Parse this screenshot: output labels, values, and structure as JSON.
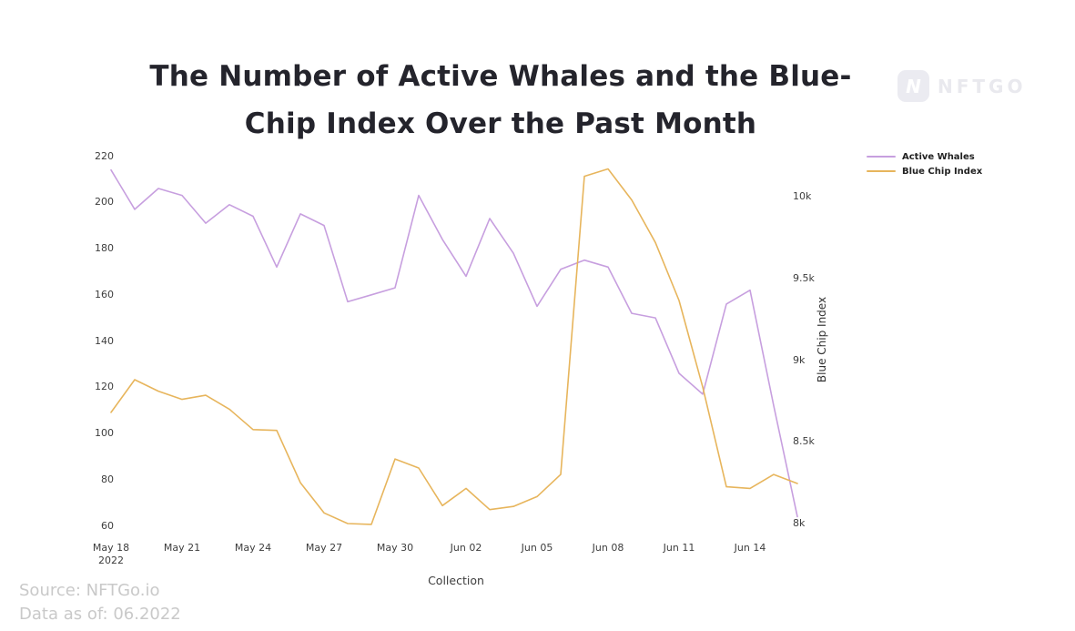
{
  "page": {
    "title_line1": "The Number of Active Whales and the Blue-",
    "title_line2": "Chip Index Over the Past Month",
    "watermark_logo_letter": "N",
    "watermark_text": "NFTGO",
    "source_line1": "Source: NFTGo.io",
    "source_line2": "Data as of: 06.2022"
  },
  "chart_data": {
    "type": "line",
    "title": "The Number of Active Whales and the Blue-Chip Index Over the Past Month",
    "xlabel": "Collection",
    "grid": false,
    "x": [
      "May 18",
      "May 19",
      "May 20",
      "May 21",
      "May 22",
      "May 23",
      "May 24",
      "May 25",
      "May 26",
      "May 27",
      "May 28",
      "May 29",
      "May 30",
      "May 31",
      "Jun 01",
      "Jun 02",
      "Jun 03",
      "Jun 04",
      "Jun 05",
      "Jun 06",
      "Jun 07",
      "Jun 08",
      "Jun 09",
      "Jun 10",
      "Jun 11",
      "Jun 12",
      "Jun 13",
      "Jun 14",
      "Jun 15",
      "Jun 16"
    ],
    "x_tick_labels": [
      {
        "label": "May 18",
        "sub": "2022",
        "index": 0
      },
      {
        "label": "May 21",
        "index": 3
      },
      {
        "label": "May 24",
        "index": 6
      },
      {
        "label": "May 27",
        "index": 9
      },
      {
        "label": "May 30",
        "index": 12
      },
      {
        "label": "Jun 02",
        "index": 15
      },
      {
        "label": "Jun 05",
        "index": 18
      },
      {
        "label": "Jun 08",
        "index": 21
      },
      {
        "label": "Jun 11",
        "index": 24
      },
      {
        "label": "Jun 14",
        "index": 27
      }
    ],
    "series": [
      {
        "name": "Active Whales",
        "axis": "left",
        "color": "#c79fdf",
        "values": [
          214,
          197,
          206,
          203,
          191,
          199,
          194,
          172,
          195,
          190,
          157,
          160,
          163,
          203,
          184,
          168,
          193,
          178,
          155,
          171,
          175,
          172,
          152,
          150,
          126,
          117,
          156,
          162,
          112,
          64
        ]
      },
      {
        "name": "Blue Chip Index",
        "axis": "right",
        "color": "#e7b55c",
        "values": [
          8680,
          8880,
          8810,
          8760,
          8785,
          8700,
          8575,
          8570,
          8250,
          8065,
          8000,
          7995,
          8395,
          8340,
          8110,
          8215,
          8085,
          8105,
          8165,
          8300,
          10125,
          10170,
          9980,
          9720,
          9365,
          8835,
          8225,
          8215,
          8300,
          8245
        ]
      }
    ],
    "left_axis": {
      "ticks": [
        220,
        200,
        180,
        160,
        140,
        120,
        100,
        80,
        60
      ],
      "range": [
        60,
        220
      ]
    },
    "right_axis": {
      "label": "Blue Chip Index",
      "ticks": [
        {
          "label": "10k",
          "value": 10000
        },
        {
          "label": "9.5k",
          "value": 9500
        },
        {
          "label": "9k",
          "value": 9000
        },
        {
          "label": "8.5k",
          "value": 8500
        },
        {
          "label": "8k",
          "value": 8000
        }
      ],
      "range": [
        8000,
        10000
      ]
    },
    "legend": {
      "position": "top-right",
      "entries": [
        "Active Whales",
        "Blue Chip Index"
      ]
    }
  }
}
